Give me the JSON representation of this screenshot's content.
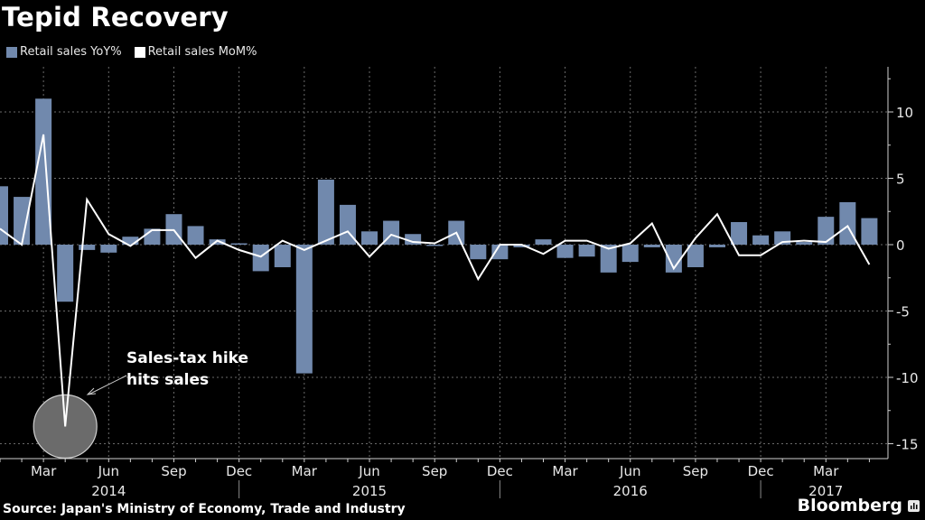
{
  "chart_data": {
    "type": "bar+line",
    "title": "Tepid Recovery",
    "legend": [
      {
        "label": "Retail sales YoY%",
        "color": "#7189ad"
      },
      {
        "label": "Retail sales MoM%",
        "color": "#ffffff"
      }
    ],
    "legend_placement": "top-left",
    "x": [
      "2014-01",
      "2014-02",
      "2014-03",
      "2014-04",
      "2014-05",
      "2014-06",
      "2014-07",
      "2014-08",
      "2014-09",
      "2014-10",
      "2014-11",
      "2014-12",
      "2015-01",
      "2015-02",
      "2015-03",
      "2015-04",
      "2015-05",
      "2015-06",
      "2015-07",
      "2015-08",
      "2015-09",
      "2015-10",
      "2015-11",
      "2015-12",
      "2016-01",
      "2016-02",
      "2016-03",
      "2016-04",
      "2016-05",
      "2016-06",
      "2016-07",
      "2016-08",
      "2016-09",
      "2016-10",
      "2016-11",
      "2016-12",
      "2017-01",
      "2017-02",
      "2017-03",
      "2017-04",
      "2017-05"
    ],
    "series": [
      {
        "name": "Retail sales YoY%",
        "type": "bar",
        "color": "#7189ad",
        "values": [
          4.4,
          3.6,
          11.0,
          -4.3,
          -0.4,
          -0.6,
          0.6,
          1.2,
          2.3,
          1.4,
          0.4,
          0.1,
          -2.0,
          -1.7,
          -9.7,
          4.9,
          3.0,
          1.0,
          1.8,
          0.8,
          -0.1,
          1.8,
          -1.1,
          -1.1,
          -0.2,
          0.4,
          -1.0,
          -0.9,
          -2.1,
          -1.3,
          -0.2,
          -2.1,
          -1.7,
          -0.2,
          1.7,
          0.7,
          1.0,
          0.2,
          2.1,
          3.2,
          2.0
        ]
      },
      {
        "name": "Retail sales MoM%",
        "type": "line",
        "color": "#ffffff",
        "values": [
          1.2,
          0.0,
          8.3,
          -13.7,
          3.4,
          0.8,
          -0.1,
          1.1,
          1.1,
          -1.0,
          0.3,
          -0.4,
          -0.9,
          0.3,
          -0.4,
          0.3,
          1.0,
          -0.9,
          0.75,
          0.2,
          0.1,
          0.9,
          -2.6,
          0.0,
          0.0,
          -0.7,
          0.3,
          0.3,
          -0.3,
          0.1,
          1.6,
          -1.8,
          0.5,
          2.3,
          -0.8,
          -0.8,
          0.2,
          0.3,
          0.2,
          1.4,
          -1.5
        ]
      }
    ],
    "ylim": [
      -15.5,
      13
    ],
    "yticks": [
      10,
      5,
      0,
      -5,
      -10,
      -15
    ],
    "ytick_labels": [
      "10",
      "5",
      "0",
      "-5",
      "-10",
      "-15"
    ],
    "y_axis_side": "right",
    "xtick_labels": [
      {
        "month": "2014-03",
        "label": "Mar"
      },
      {
        "month": "2014-06",
        "label": "Jun"
      },
      {
        "month": "2014-09",
        "label": "Sep"
      },
      {
        "month": "2014-12",
        "label": "Dec"
      },
      {
        "month": "2015-03",
        "label": "Mar"
      },
      {
        "month": "2015-06",
        "label": "Jun"
      },
      {
        "month": "2015-09",
        "label": "Sep"
      },
      {
        "month": "2015-12",
        "label": "Dec"
      },
      {
        "month": "2016-03",
        "label": "Mar"
      },
      {
        "month": "2016-06",
        "label": "Jun"
      },
      {
        "month": "2016-09",
        "label": "Sep"
      },
      {
        "month": "2016-12",
        "label": "Dec"
      },
      {
        "month": "2017-03",
        "label": "Mar"
      }
    ],
    "year_labels": [
      {
        "month": "2014-06",
        "label": "2014"
      },
      {
        "month": "2015-06",
        "label": "2015"
      },
      {
        "month": "2016-06",
        "label": "2016"
      },
      {
        "month": "2017-03",
        "label": "2017"
      }
    ],
    "year_separators": [
      "2014-12",
      "2015-12",
      "2016-12"
    ],
    "grid": true,
    "annotation": {
      "lines": [
        "Sales-tax hike",
        "hits sales"
      ],
      "target_month": "2014-04",
      "target_value": -13.7
    }
  },
  "footer": {
    "source": "Source: Japan's Ministry of Economy, Trade and Industry",
    "brand": "Bloomberg"
  }
}
